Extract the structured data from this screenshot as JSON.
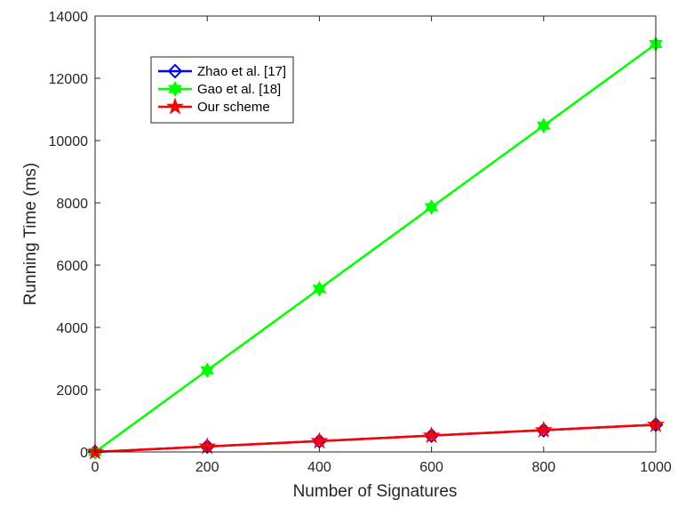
{
  "chart_data": {
    "type": "line",
    "title": "",
    "xlabel": "Number of Signatures",
    "ylabel": "Running Time (ms)",
    "xlim": [
      0,
      1000
    ],
    "ylim": [
      0,
      14000
    ],
    "x_ticks": [
      "0",
      "200",
      "400",
      "600",
      "800",
      "1000"
    ],
    "y_ticks": [
      "0",
      "2000",
      "4000",
      "6000",
      "8000",
      "10000",
      "12000",
      "14000"
    ],
    "grid": false,
    "legend_position": "top-left",
    "x": [
      0,
      200,
      400,
      600,
      800,
      1000
    ],
    "series": [
      {
        "name": "Zhao et al. [17]",
        "values": [
          0,
          175,
          350,
          525,
          700,
          875
        ],
        "color": "#0000ff",
        "marker": "diamond"
      },
      {
        "name": "Gao et al. [18]",
        "values": [
          0,
          2620,
          5240,
          7860,
          10480,
          13100
        ],
        "color": "#00ff00",
        "marker": "hexagram"
      },
      {
        "name": "Our scheme",
        "values": [
          0,
          175,
          350,
          525,
          700,
          875
        ],
        "color": "#ff0000",
        "marker": "pentagram"
      }
    ]
  }
}
